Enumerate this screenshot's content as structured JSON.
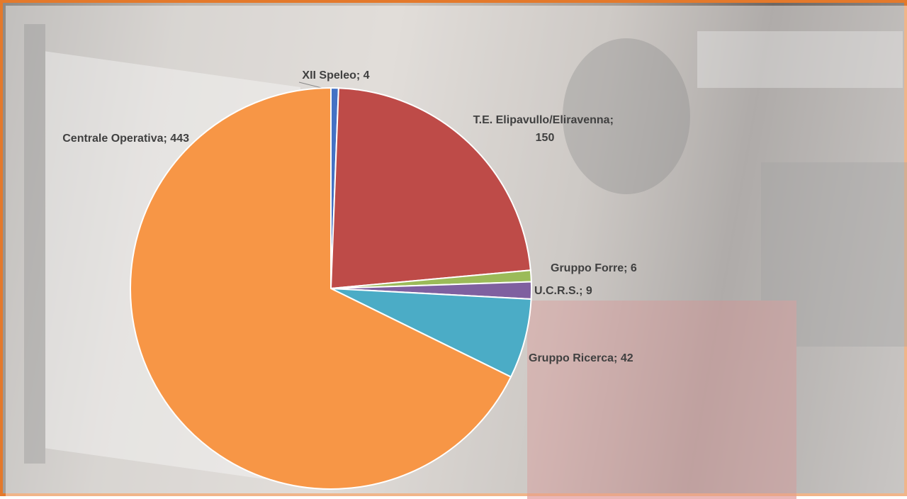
{
  "chart_data": {
    "type": "pie",
    "categories": [
      "XII Speleo",
      "T.E. Elipavullo/Eliravenna",
      "Gruppo Forre",
      "U.C.R.S.",
      "Gruppo Ricerca",
      "Centrale Operativa"
    ],
    "values": [
      4,
      150,
      6,
      9,
      42,
      443
    ],
    "colors": [
      "#4472c4",
      "#be4b48",
      "#9bbb59",
      "#7f60a0",
      "#4bacc6",
      "#f79646"
    ],
    "label_separator": "; "
  }
}
